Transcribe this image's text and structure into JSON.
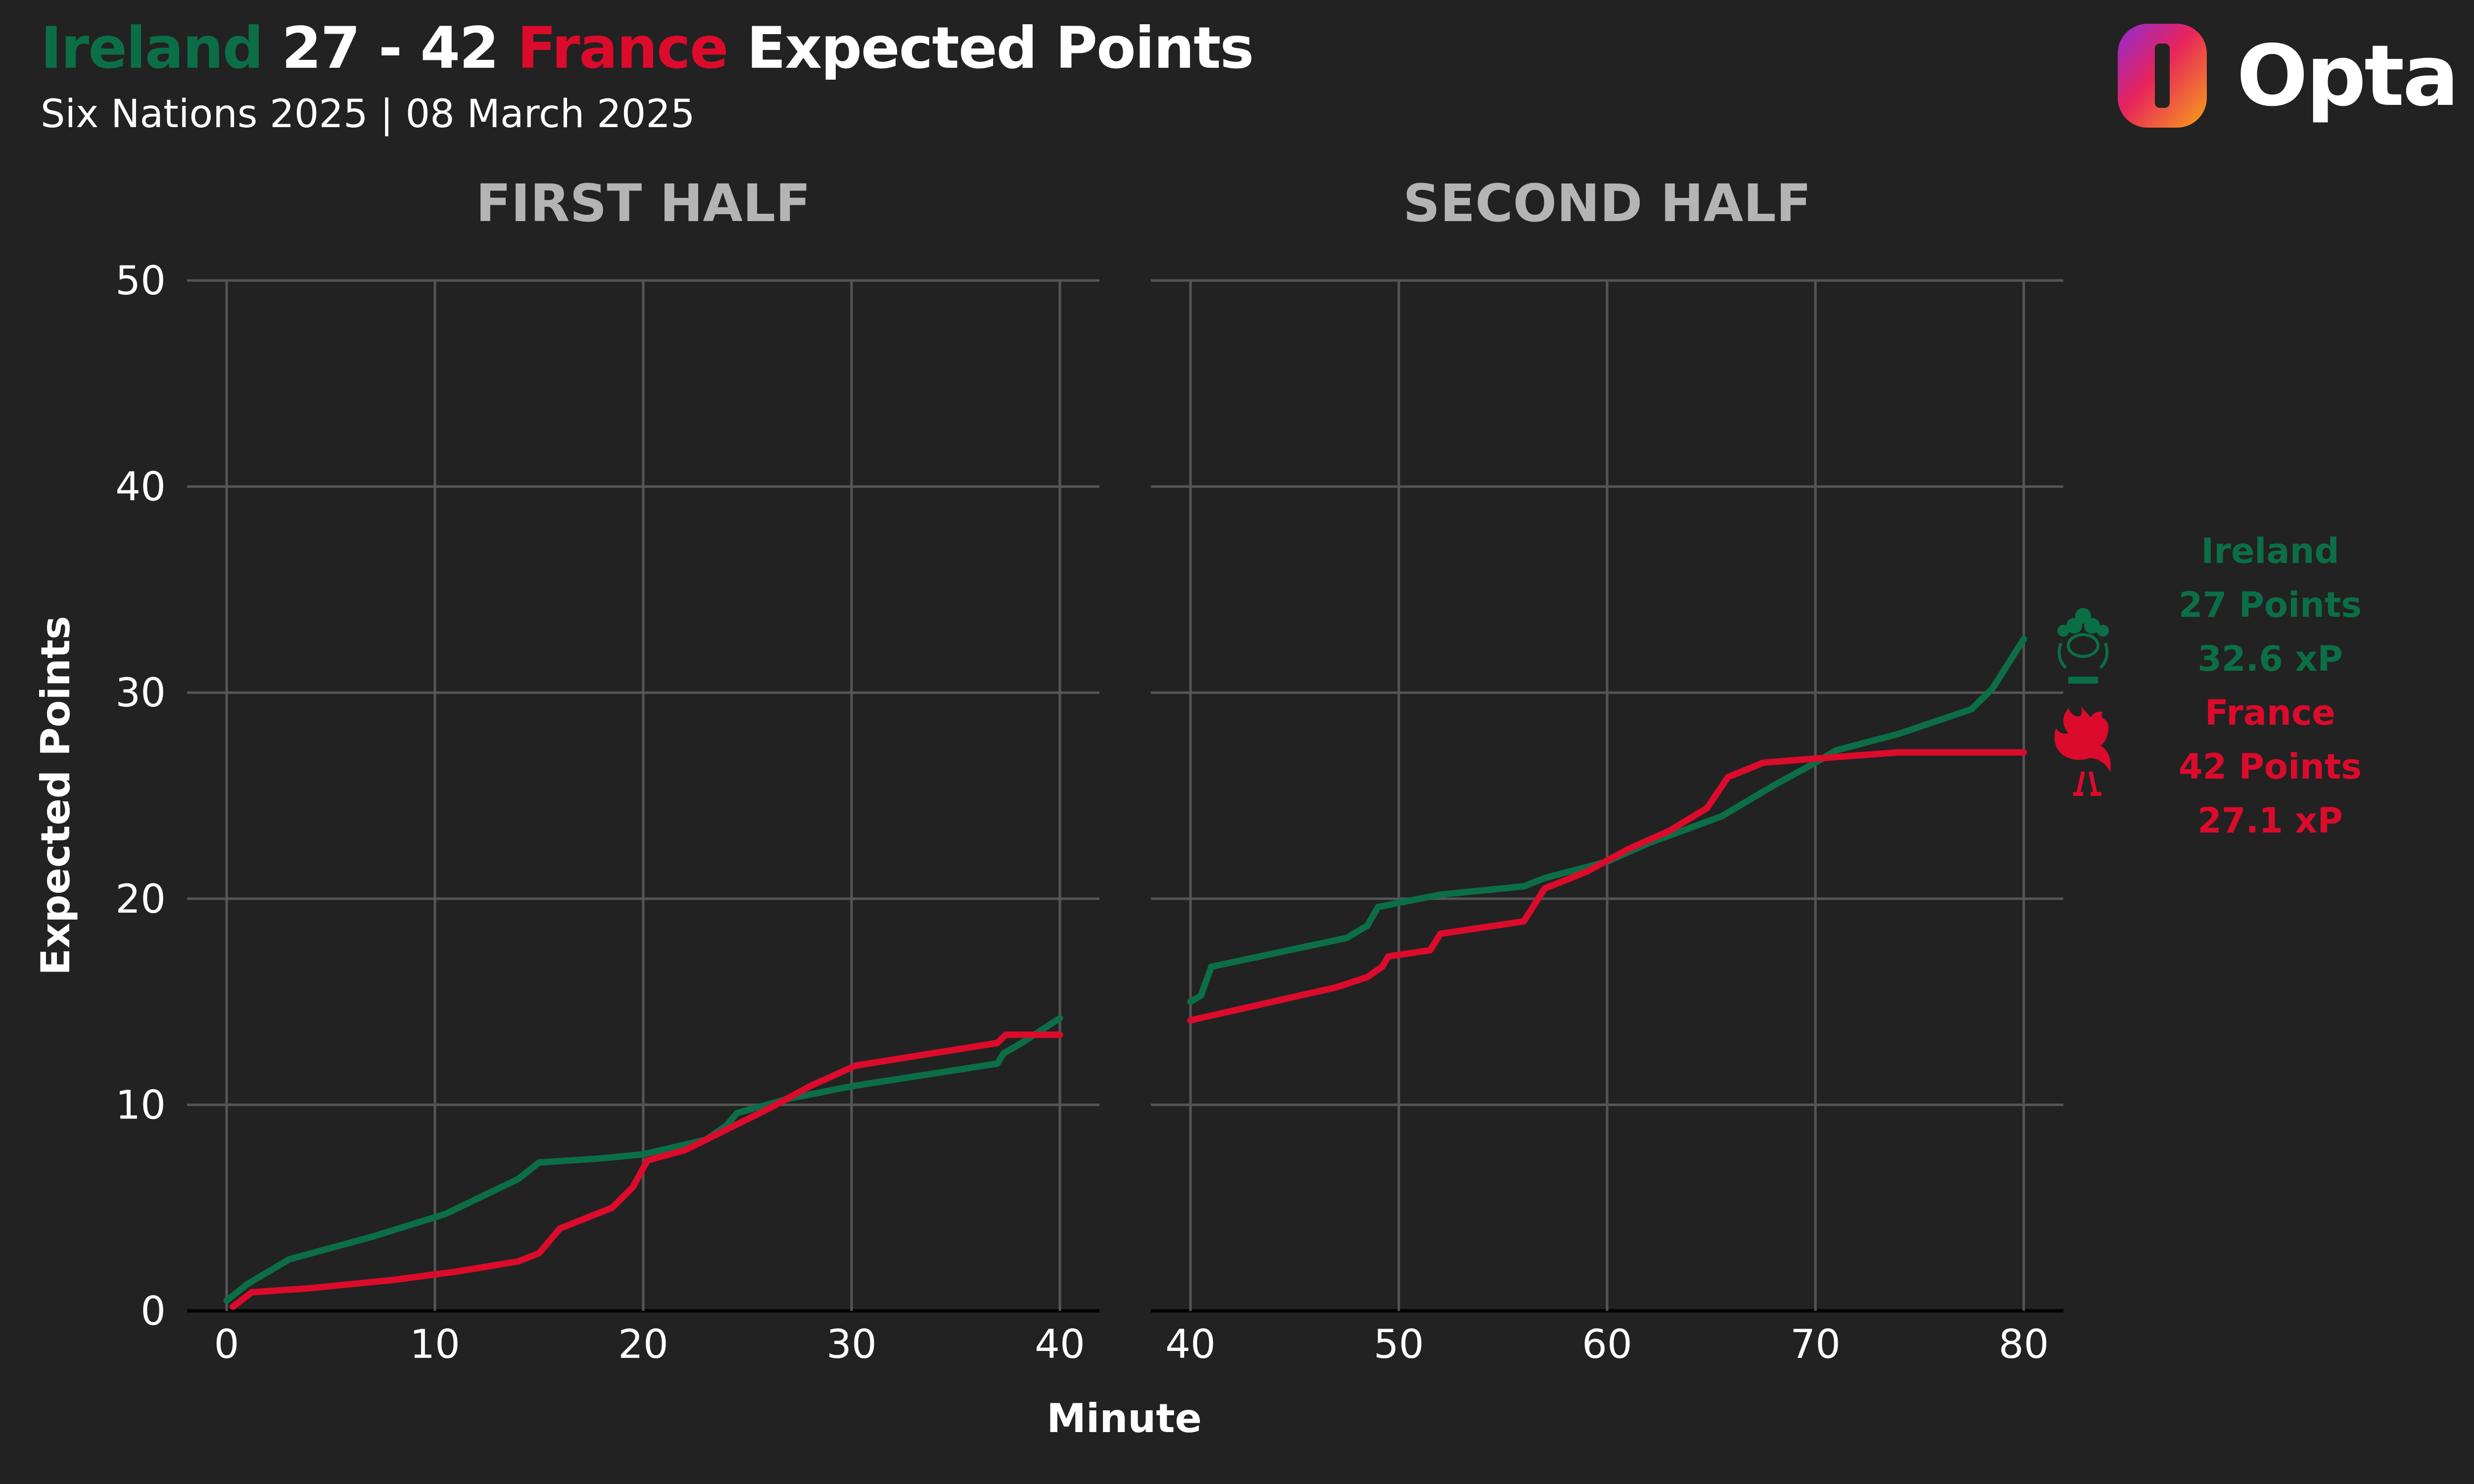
{
  "header": {
    "team_home": "Ireland",
    "score": " 27 - 42 ",
    "team_away": "France",
    "title_suffix": " Expected Points",
    "subtitle": "Six Nations 2025 | 08 March 2025",
    "brand": "Opta"
  },
  "colors": {
    "ireland": "#0b6e47",
    "france": "#dc0b2c",
    "grid": "#555555",
    "axis": "#000000"
  },
  "legend": {
    "ireland": [
      "Ireland",
      "27 Points",
      "32.6 xP"
    ],
    "france": [
      "France",
      "42 Points",
      "27.1 xP"
    ],
    "ireland_icon": "shamrock-crest-icon",
    "france_icon": "rooster-icon"
  },
  "chart_data": [
    {
      "type": "line",
      "title": "FIRST HALF",
      "xlim": [
        0,
        40
      ],
      "ylim": [
        0,
        50
      ],
      "xticks": [
        0,
        10,
        20,
        30,
        40
      ],
      "yticks": [
        0,
        10,
        20,
        30,
        40,
        50
      ],
      "ylabel": "Expected Points",
      "series": [
        {
          "name": "Ireland",
          "points": [
            [
              0,
              0.5
            ],
            [
              1,
              1.3
            ],
            [
              3,
              2.5
            ],
            [
              7,
              3.6
            ],
            [
              10.5,
              4.7
            ],
            [
              14,
              6.4
            ],
            [
              15,
              7.2
            ],
            [
              18,
              7.4
            ],
            [
              20,
              7.6
            ],
            [
              23,
              8.3
            ],
            [
              24,
              9.0
            ],
            [
              24.5,
              9.6
            ],
            [
              27,
              10.3
            ],
            [
              30,
              10.9
            ],
            [
              37,
              12.0
            ],
            [
              37.3,
              12.5
            ],
            [
              38,
              12.9
            ],
            [
              40,
              14.2
            ]
          ]
        },
        {
          "name": "France",
          "points": [
            [
              0.3,
              0.2
            ],
            [
              1.2,
              0.9
            ],
            [
              4,
              1.1
            ],
            [
              8,
              1.5
            ],
            [
              11,
              1.9
            ],
            [
              14,
              2.4
            ],
            [
              15,
              2.8
            ],
            [
              16,
              4.0
            ],
            [
              18.5,
              5.0
            ],
            [
              19.5,
              6.0
            ],
            [
              20.2,
              7.3
            ],
            [
              22,
              7.8
            ],
            [
              24,
              8.8
            ],
            [
              26,
              9.8
            ],
            [
              28,
              10.9
            ],
            [
              30.2,
              11.9
            ],
            [
              37,
              13.0
            ],
            [
              37.4,
              13.4
            ],
            [
              40,
              13.4
            ]
          ]
        }
      ]
    },
    {
      "type": "line",
      "title": "SECOND HALF",
      "xlim": [
        40,
        80
      ],
      "ylim": [
        0,
        50
      ],
      "xticks": [
        40,
        50,
        60,
        70,
        80
      ],
      "yticks": [
        0,
        10,
        20,
        30,
        40,
        50
      ],
      "series": [
        {
          "name": "Ireland",
          "points": [
            [
              40,
              15.0
            ],
            [
              40.5,
              15.3
            ],
            [
              41,
              16.7
            ],
            [
              47.5,
              18.1
            ],
            [
              48.5,
              18.7
            ],
            [
              49,
              19.6
            ],
            [
              51,
              20.0
            ],
            [
              52,
              20.2
            ],
            [
              56,
              20.6
            ],
            [
              57,
              21.0
            ],
            [
              60,
              21.8
            ],
            [
              62,
              22.7
            ],
            [
              65.5,
              24.0
            ],
            [
              68,
              25.5
            ],
            [
              70,
              26.6
            ],
            [
              71,
              27.2
            ],
            [
              74,
              28.0
            ],
            [
              77.5,
              29.2
            ],
            [
              78.5,
              30.2
            ],
            [
              80,
              32.6
            ]
          ]
        },
        {
          "name": "France",
          "points": [
            [
              40,
              14.1
            ],
            [
              47,
              15.7
            ],
            [
              48.5,
              16.2
            ],
            [
              49.2,
              16.7
            ],
            [
              49.5,
              17.2
            ],
            [
              51.5,
              17.5
            ],
            [
              52,
              18.3
            ],
            [
              56,
              18.9
            ],
            [
              57,
              20.5
            ],
            [
              59,
              21.3
            ],
            [
              61,
              22.4
            ],
            [
              63,
              23.3
            ],
            [
              64.8,
              24.4
            ],
            [
              65.8,
              25.9
            ],
            [
              67.5,
              26.6
            ],
            [
              70,
              26.8
            ],
            [
              74,
              27.1
            ],
            [
              80,
              27.1
            ]
          ]
        }
      ]
    }
  ],
  "shared_xlabel": "Minute"
}
